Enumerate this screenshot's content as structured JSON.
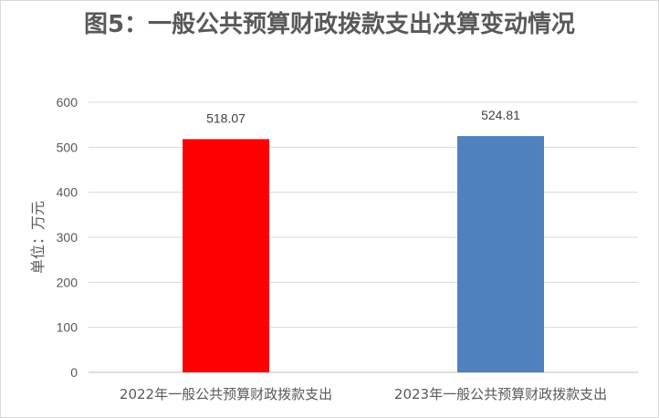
{
  "chart_data": {
    "type": "bar",
    "title": "图5：一般公共预算财政拨款支出决算变动情况",
    "xlabel": "",
    "ylabel": "单位：万元",
    "categories": [
      "2022年一般公共预算财政拨款支出",
      "2023年一般公共预算财政拨款支出"
    ],
    "values": [
      518.07,
      524.81
    ],
    "value_labels": [
      "518.07",
      "524.81"
    ],
    "bar_colors": [
      "#ff0000",
      "#4f81bd"
    ],
    "ylim": [
      0,
      600
    ],
    "yticks": [
      0,
      100,
      200,
      300,
      400,
      500,
      600
    ],
    "grid": true,
    "legend": "none"
  }
}
